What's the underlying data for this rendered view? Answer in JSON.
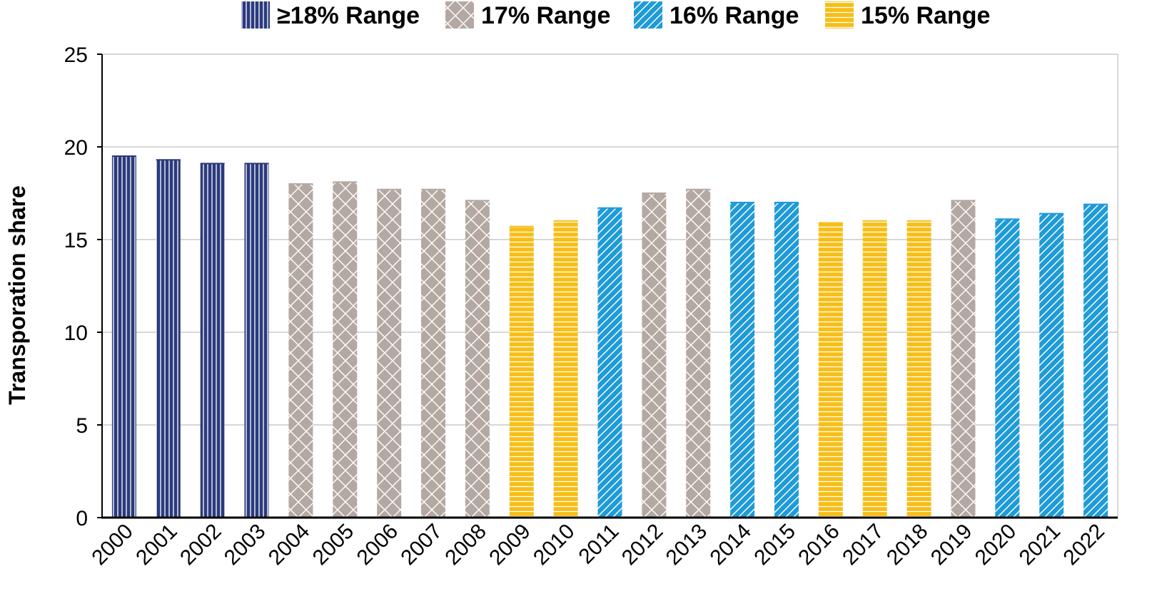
{
  "chart_data": {
    "type": "bar",
    "title": "",
    "xlabel": "",
    "ylabel": "Transporation share",
    "ylim": [
      0,
      25
    ],
    "yticks": [
      0,
      5,
      10,
      15,
      20,
      25
    ],
    "grid": true,
    "legend_position": "top-center",
    "legend": [
      {
        "key": "r18",
        "label": "≥18% Range",
        "color": "#2a3a7c",
        "pattern": "vertical-lines"
      },
      {
        "key": "r17",
        "label": "17% Range",
        "color": "#b4a9a2",
        "pattern": "cross-hatch"
      },
      {
        "key": "r16",
        "label": "16% Range",
        "color": "#1f9bd9",
        "pattern": "diagonal-lines"
      },
      {
        "key": "r15",
        "label": "15% Range",
        "color": "#f7be17",
        "pattern": "horizontal-lines"
      }
    ],
    "categories": [
      "2000",
      "2001",
      "2002",
      "2003",
      "2004",
      "2005",
      "2006",
      "2007",
      "2008",
      "2009",
      "2010",
      "2011",
      "2012",
      "2013",
      "2014",
      "2015",
      "2016",
      "2017",
      "2018",
      "2019",
      "2020",
      "2021",
      "2022"
    ],
    "values": [
      19.5,
      19.3,
      19.1,
      19.1,
      18.0,
      18.1,
      17.7,
      17.7,
      17.1,
      15.7,
      16.0,
      16.7,
      17.5,
      17.7,
      17.0,
      17.0,
      15.9,
      16.0,
      16.0,
      17.1,
      16.1,
      16.4,
      16.9
    ],
    "groups": [
      "r18",
      "r18",
      "r18",
      "r18",
      "r17",
      "r17",
      "r17",
      "r17",
      "r17",
      "r15",
      "r15",
      "r16",
      "r17",
      "r17",
      "r16",
      "r16",
      "r15",
      "r15",
      "r15",
      "r17",
      "r16",
      "r16",
      "r16"
    ]
  }
}
